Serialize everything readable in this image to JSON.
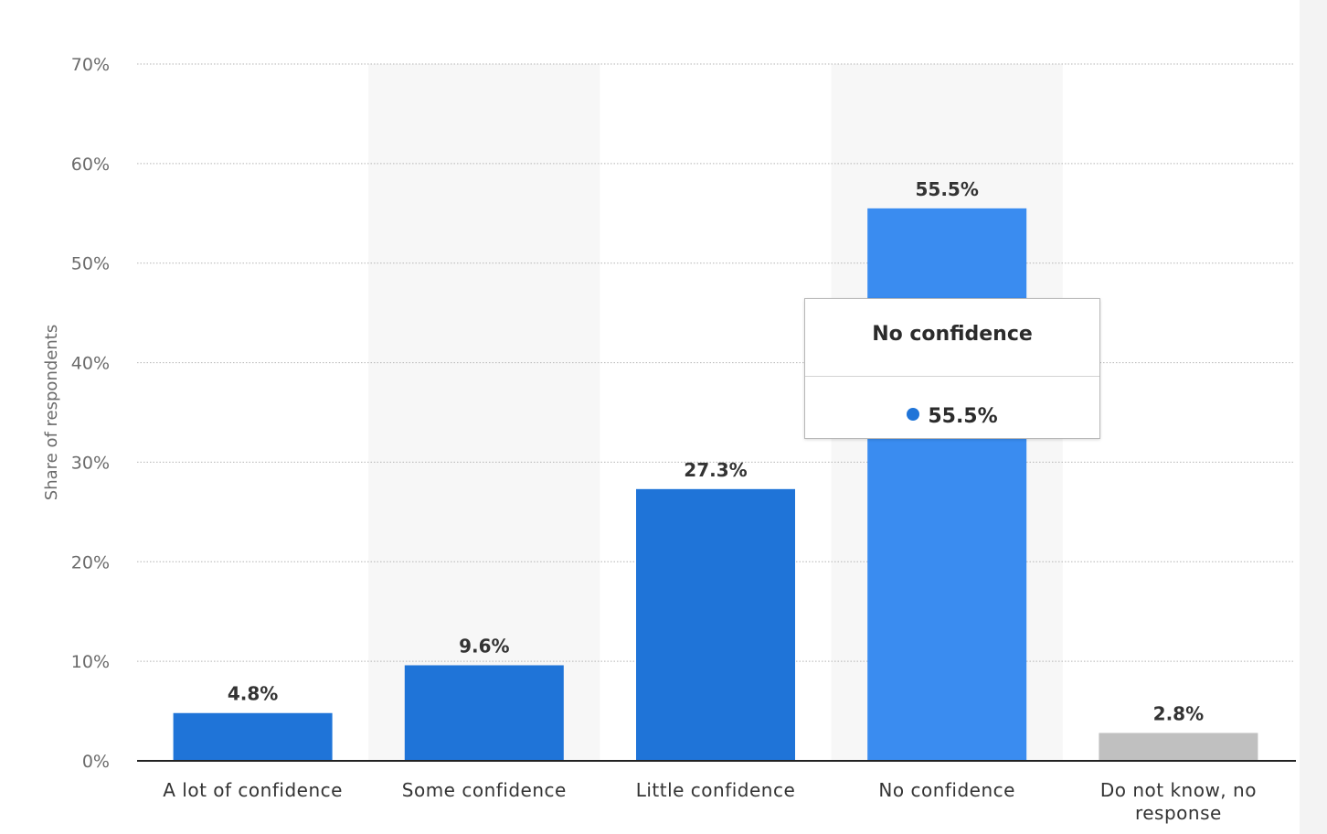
{
  "chart_data": {
    "type": "bar",
    "categories": [
      "A lot of confidence",
      "Some confidence",
      "Little confidence",
      "No confidence",
      "Do not know, no response"
    ],
    "category_lines": [
      [
        "A lot of confidence"
      ],
      [
        "Some confidence"
      ],
      [
        "Little confidence"
      ],
      [
        "No confidence"
      ],
      [
        "Do not know, no",
        "response"
      ]
    ],
    "values": [
      4.8,
      9.6,
      27.3,
      55.5,
      2.8
    ],
    "data_labels": [
      "4.8%",
      "9.6%",
      "27.3%",
      "55.5%",
      "2.8%"
    ],
    "ylabel": "Share of respondents",
    "ylim": [
      0,
      70
    ],
    "yticks": [
      0,
      10,
      20,
      30,
      40,
      50,
      60,
      70
    ],
    "ytick_labels": [
      "0%",
      "10%",
      "20%",
      "30%",
      "40%",
      "50%",
      "60%",
      "70%"
    ],
    "grid": true,
    "bar_colors": [
      "#1f74d8",
      "#1f74d8",
      "#1f74d8",
      "#3a8cf0",
      "#c0c0c0"
    ],
    "highlighted_index": 3,
    "alt_band_color": "#f7f7f7"
  },
  "tooltip": {
    "title": "No confidence",
    "value": "55.5%",
    "dot_color": "#1f74d8"
  }
}
